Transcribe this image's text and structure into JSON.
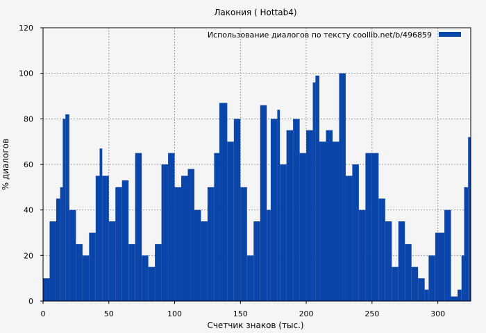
{
  "chart_data": {
    "type": "bar",
    "title": "Лакония ( Hottab4)",
    "xlabel": "Счетчик знаков (тыс.)",
    "ylabel": "% диалогов",
    "xlim": [
      0,
      325
    ],
    "ylim": [
      0,
      120
    ],
    "x_ticks": [
      "0",
      "50",
      "100",
      "150",
      "200",
      "250",
      "300"
    ],
    "y_ticks": [
      "0",
      "20",
      "40",
      "60",
      "80",
      "100",
      "120"
    ],
    "grid": true,
    "legend_position": "top-right",
    "series": [
      {
        "name": "Использование диалогов по тексту  coollib.net/b/496859",
        "color": "#0a45aa",
        "x": [
          0,
          5,
          10,
          13,
          15,
          17,
          20,
          25,
          30,
          35,
          40,
          43,
          45,
          50,
          55,
          60,
          65,
          70,
          75,
          80,
          85,
          90,
          95,
          100,
          105,
          110,
          115,
          120,
          125,
          130,
          134,
          140,
          145,
          150,
          155,
          160,
          165,
          170,
          173,
          178,
          180,
          185,
          190,
          195,
          200,
          205,
          207,
          210,
          215,
          220,
          225,
          230,
          235,
          240,
          245,
          250,
          255,
          260,
          265,
          270,
          275,
          280,
          285,
          290,
          293,
          298,
          305,
          310,
          315,
          318,
          320,
          323
        ],
        "values": [
          10,
          35,
          45,
          50,
          80,
          82,
          40,
          25,
          20,
          30,
          55,
          67,
          55,
          35,
          50,
          53,
          25,
          65,
          20,
          15,
          25,
          60,
          65,
          50,
          55,
          58,
          40,
          35,
          50,
          65,
          87,
          70,
          80,
          50,
          20,
          35,
          86,
          40,
          80,
          84,
          60,
          75,
          80,
          65,
          75,
          96,
          99,
          70,
          75,
          70,
          100,
          55,
          60,
          40,
          65,
          65,
          45,
          35,
          15,
          35,
          25,
          15,
          10,
          5,
          20,
          30,
          40,
          2,
          5,
          20,
          50,
          72
        ]
      }
    ]
  }
}
